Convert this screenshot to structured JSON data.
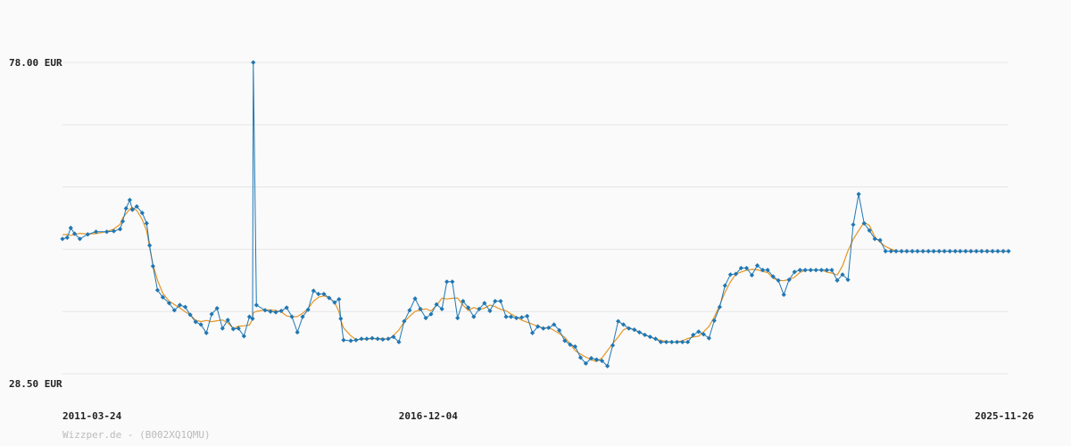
{
  "credit": "Wizzper.de - (B002XQ1QMU)",
  "colors": {
    "price": "#1f77b4",
    "average": "#e69422",
    "grid": "#e6e6e6",
    "background": "#fafafa"
  },
  "chart_data": {
    "type": "line",
    "title": "",
    "xlabel": "",
    "ylabel": "",
    "ylim": [
      28.5,
      78.0
    ],
    "xlim": [
      "2011-03-24",
      "2025-12-20"
    ],
    "y_tick_labels": [
      {
        "value": 78.0,
        "label": "78.00 EUR"
      },
      {
        "value": 28.5,
        "label": "28.50 EUR"
      }
    ],
    "y_gridlines": [
      78.0,
      68.4,
      58.8,
      49.2,
      39.6,
      30.0
    ],
    "x_tick_labels": [
      {
        "date": "2011-03-24",
        "label": "2011-03-24"
      },
      {
        "date": "2016-12-04",
        "label": "2016-12-04"
      },
      {
        "date": "2025-11-26",
        "label": "2025-11-26"
      }
    ],
    "grid": true,
    "legend": "none",
    "series": [
      {
        "role": "price",
        "dates": [
          "2011-03-24",
          "2011-04-20",
          "2011-05-10",
          "2011-06-01",
          "2011-07-01",
          "2011-08-15",
          "2011-10-01",
          "2011-12-01",
          "2012-01-10",
          "2012-02-15",
          "2012-03-01",
          "2012-03-20",
          "2012-04-10",
          "2012-04-25",
          "2012-05-20",
          "2012-06-20",
          "2012-07-15",
          "2012-08-01",
          "2012-08-20",
          "2012-09-15",
          "2012-10-15",
          "2012-11-20",
          "2012-12-20",
          "2013-01-20",
          "2013-02-20",
          "2013-03-20",
          "2013-04-20",
          "2013-05-20",
          "2013-06-20",
          "2013-07-20",
          "2013-08-20",
          "2013-09-20",
          "2013-10-20",
          "2013-11-20",
          "2013-12-20",
          "2014-01-20",
          "2014-02-20",
          "2014-03-10",
          "2014-03-14",
          "2014-04-01",
          "2014-05-20",
          "2014-06-20",
          "2014-07-20",
          "2014-08-20",
          "2014-09-20",
          "2014-10-20",
          "2014-11-20",
          "2014-12-20",
          "2015-01-20",
          "2015-02-20",
          "2015-03-20",
          "2015-04-20",
          "2015-05-20",
          "2015-06-20",
          "2015-07-15",
          "2015-07-25",
          "2015-08-10",
          "2015-09-20",
          "2015-10-20",
          "2015-11-20",
          "2015-12-20",
          "2016-01-20",
          "2016-02-20",
          "2016-03-20",
          "2016-04-20",
          "2016-05-20",
          "2016-06-20",
          "2016-07-20",
          "2016-08-20",
          "2016-09-20",
          "2016-10-20",
          "2016-11-20",
          "2016-12-20",
          "2017-01-20",
          "2017-02-20",
          "2017-03-20",
          "2017-04-20",
          "2017-05-20",
          "2017-06-20",
          "2017-07-20",
          "2017-08-20",
          "2017-09-20",
          "2017-10-20",
          "2017-11-20",
          "2017-12-20",
          "2018-01-20",
          "2018-02-20",
          "2018-03-20",
          "2018-04-20",
          "2018-05-20",
          "2018-06-20",
          "2018-07-20",
          "2018-08-20",
          "2018-09-20",
          "2018-10-20",
          "2018-11-20",
          "2018-12-20",
          "2019-01-20",
          "2019-02-20",
          "2019-03-20",
          "2019-04-20",
          "2019-05-20",
          "2019-06-20",
          "2019-07-20",
          "2019-08-20",
          "2019-09-20",
          "2019-10-20",
          "2019-11-20",
          "2019-12-20",
          "2020-01-20",
          "2020-02-20",
          "2020-03-20",
          "2020-04-20",
          "2020-05-20",
          "2020-06-20",
          "2020-07-20",
          "2020-08-20",
          "2020-09-20",
          "2020-10-20",
          "2020-11-20",
          "2020-12-20",
          "2021-01-20",
          "2021-02-20",
          "2021-03-20",
          "2021-04-20",
          "2021-05-20",
          "2021-06-20",
          "2021-07-20",
          "2021-08-20",
          "2021-09-20",
          "2021-10-20",
          "2021-11-20",
          "2021-12-20",
          "2022-01-20",
          "2022-02-20",
          "2022-03-20",
          "2022-04-20",
          "2022-05-20",
          "2022-06-20",
          "2022-07-20",
          "2022-08-20",
          "2022-09-20",
          "2022-10-20",
          "2022-11-20",
          "2022-12-20",
          "2023-01-20",
          "2023-02-20",
          "2023-03-20",
          "2023-04-20",
          "2023-05-20",
          "2023-06-20",
          "2023-07-20",
          "2023-08-20",
          "2023-09-20",
          "2023-10-20",
          "2023-11-20",
          "2023-12-20",
          "2024-01-20",
          "2024-02-20",
          "2024-03-20",
          "2024-04-20",
          "2024-05-20",
          "2024-06-20",
          "2024-07-20",
          "2024-08-20",
          "2024-09-20",
          "2024-10-20",
          "2024-11-20",
          "2024-12-20",
          "2025-01-20",
          "2025-02-20",
          "2025-03-20",
          "2025-04-20",
          "2025-05-20",
          "2025-06-20",
          "2025-07-20",
          "2025-08-20",
          "2025-09-20",
          "2025-10-20",
          "2025-11-20",
          "2025-12-20"
        ],
        "values": [
          50.8,
          51.0,
          52.5,
          51.6,
          50.8,
          51.5,
          51.9,
          51.9,
          52.0,
          52.3,
          53.5,
          55.5,
          56.8,
          55.3,
          55.8,
          54.8,
          53.2,
          49.8,
          46.6,
          42.9,
          41.8,
          40.9,
          39.8,
          40.6,
          40.3,
          39.1,
          38.0,
          37.6,
          36.3,
          39.2,
          40.1,
          37.0,
          38.3,
          36.9,
          37.0,
          35.8,
          38.8,
          38.5,
          78.0,
          40.6,
          39.8,
          39.6,
          39.5,
          39.7,
          40.2,
          38.8,
          36.4,
          38.8,
          39.9,
          42.8,
          42.3,
          42.3,
          41.7,
          41.0,
          41.5,
          38.5,
          35.2,
          35.1,
          35.2,
          35.4,
          35.4,
          35.5,
          35.4,
          35.3,
          35.4,
          35.7,
          34.9,
          38.1,
          39.8,
          41.6,
          40.0,
          38.6,
          39.2,
          40.7,
          40.0,
          44.2,
          44.2,
          38.6,
          41.2,
          40.2,
          38.8,
          40.0,
          40.9,
          39.7,
          41.2,
          41.2,
          38.8,
          38.8,
          38.6,
          38.7,
          38.9,
          36.3,
          37.3,
          37.0,
          37.1,
          37.6,
          36.7,
          35.1,
          34.5,
          34.2,
          32.5,
          31.6,
          32.4,
          32.2,
          32.0,
          31.2,
          34.4,
          38.1,
          37.6,
          37.0,
          36.8,
          36.4,
          36.0,
          35.7,
          35.4,
          34.9,
          34.9,
          34.9,
          34.9,
          34.9,
          34.9,
          36.0,
          36.5,
          36.1,
          35.5,
          38.2,
          40.3,
          43.6,
          45.3,
          45.4,
          46.3,
          46.3,
          45.2,
          46.7,
          46.0,
          46.0,
          45.0,
          44.4,
          42.2,
          44.5,
          45.7,
          46.0,
          46.0,
          46.0,
          46.0,
          46.0,
          46.0,
          46.0,
          44.4,
          45.3,
          44.5,
          53.0,
          57.7,
          53.2,
          52.1,
          50.8,
          50.6,
          48.9,
          48.9,
          48.9,
          48.9,
          48.9,
          48.9,
          48.9,
          48.9,
          48.9,
          48.9,
          48.9,
          48.9,
          48.9,
          48.9,
          48.9,
          48.9,
          48.9,
          48.9,
          48.9,
          48.9,
          48.9,
          48.9,
          48.9,
          48.9
        ]
      }
    ]
  }
}
